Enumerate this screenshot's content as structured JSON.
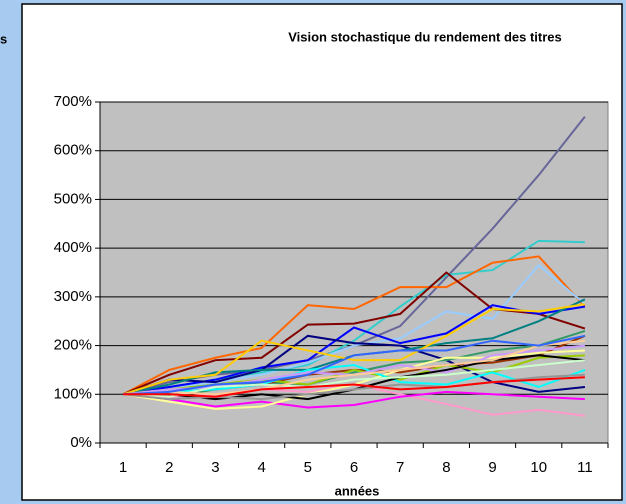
{
  "side_text": "s",
  "chart_data": {
    "type": "line",
    "title": "Vision stochastique du rendement des titres",
    "x_label": "années",
    "categories": [
      "1",
      "2",
      "3",
      "4",
      "5",
      "6",
      "7",
      "8",
      "9",
      "10",
      "11"
    ],
    "ylim": [
      0,
      700
    ],
    "yticks": [
      {
        "value": 0,
        "label": "0%"
      },
      {
        "value": 100,
        "label": "100%"
      },
      {
        "value": 200,
        "label": "200%"
      },
      {
        "value": 300,
        "label": "300%"
      },
      {
        "value": 400,
        "label": "400%"
      },
      {
        "value": 500,
        "label": "500%"
      },
      {
        "value": 600,
        "label": "600%"
      },
      {
        "value": 700,
        "label": "700%"
      }
    ],
    "grid": true,
    "series": [
      {
        "color": "#666699",
        "values": [
          100,
          125,
          140,
          150,
          170,
          200,
          240,
          340,
          440,
          550,
          670
        ]
      },
      {
        "color": "#33cccc",
        "values": [
          100,
          115,
          130,
          145,
          160,
          210,
          280,
          345,
          355,
          415,
          412
        ]
      },
      {
        "color": "#ff6600",
        "values": [
          100,
          150,
          175,
          195,
          283,
          275,
          320,
          320,
          370,
          383,
          280
        ]
      },
      {
        "color": "#99ccff",
        "values": [
          100,
          110,
          125,
          140,
          165,
          200,
          215,
          270,
          255,
          365,
          285
        ]
      },
      {
        "color": "#800000",
        "values": [
          100,
          140,
          170,
          175,
          243,
          245,
          265,
          350,
          275,
          265,
          235
        ]
      },
      {
        "color": "#0000ff",
        "values": [
          100,
          115,
          130,
          155,
          170,
          237,
          205,
          225,
          283,
          265,
          280
        ]
      },
      {
        "color": "#000080",
        "values": [
          100,
          130,
          125,
          150,
          220,
          205,
          200,
          170,
          125,
          105,
          115
        ]
      },
      {
        "color": "#008080",
        "values": [
          100,
          120,
          145,
          150,
          150,
          180,
          190,
          205,
          215,
          250,
          295
        ]
      },
      {
        "color": "#ffcc00",
        "values": [
          100,
          130,
          140,
          210,
          190,
          170,
          170,
          220,
          275,
          270,
          285
        ]
      },
      {
        "color": "#339966",
        "values": [
          100,
          95,
          110,
          125,
          120,
          145,
          165,
          170,
          190,
          200,
          230
        ]
      },
      {
        "color": "#ff99cc",
        "values": [
          100,
          95,
          100,
          110,
          105,
          120,
          100,
          80,
          58,
          68,
          56
        ]
      },
      {
        "color": "#ff00ff",
        "values": [
          100,
          90,
          75,
          85,
          73,
          78,
          95,
          105,
          100,
          95,
          90
        ]
      },
      {
        "color": "#993300",
        "values": [
          100,
          105,
          110,
          120,
          140,
          150,
          145,
          160,
          165,
          180,
          220
        ]
      },
      {
        "color": "#99cc00",
        "values": [
          100,
          110,
          120,
          130,
          120,
          150,
          130,
          160,
          145,
          175,
          180
        ]
      },
      {
        "color": "#ffff99",
        "values": [
          100,
          85,
          70,
          75,
          100,
          120,
          150,
          175,
          175,
          185,
          190
        ]
      },
      {
        "color": "#00ffff",
        "values": [
          100,
          105,
          110,
          120,
          150,
          160,
          125,
          120,
          145,
          115,
          150
        ]
      },
      {
        "color": "#cc99ff",
        "values": [
          100,
          110,
          115,
          130,
          145,
          140,
          160,
          145,
          180,
          190,
          200
        ]
      },
      {
        "color": "#000000",
        "values": [
          100,
          100,
          90,
          100,
          90,
          110,
          135,
          150,
          170,
          180,
          170
        ]
      },
      {
        "color": "#ccffcc",
        "values": [
          100,
          95,
          115,
          120,
          115,
          130,
          135,
          140,
          150,
          160,
          170
        ]
      },
      {
        "color": "#969696",
        "values": [
          100,
          90,
          95,
          90,
          100,
          110,
          120,
          115,
          125,
          135,
          140
        ]
      },
      {
        "color": "#ffcc99",
        "values": [
          100,
          105,
          100,
          110,
          130,
          140,
          150,
          160,
          170,
          200,
          210
        ]
      },
      {
        "color": "#3366ff",
        "values": [
          100,
          105,
          120,
          125,
          140,
          180,
          190,
          190,
          210,
          200,
          220
        ]
      },
      {
        "color": "#ff0000",
        "values": [
          100,
          100,
          95,
          110,
          115,
          120,
          110,
          115,
          125,
          130,
          135
        ]
      }
    ]
  }
}
